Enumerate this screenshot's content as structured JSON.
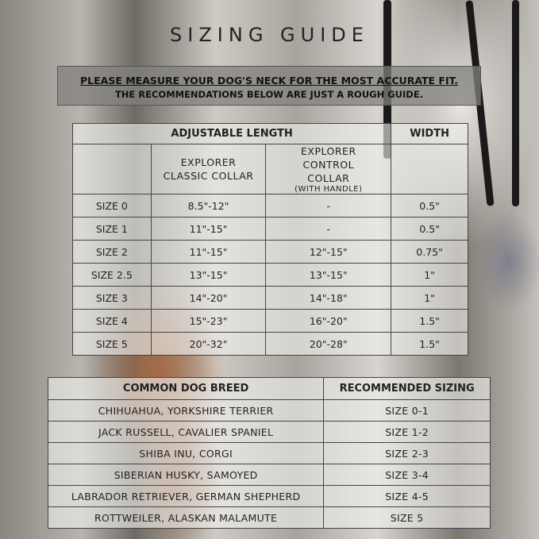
{
  "title": "SIZING GUIDE",
  "note": {
    "line1": "PLEASE MEASURE YOUR DOG'S NECK FOR THE MOST ACCURATE FIT.",
    "line2": "THE RECOMMENDATIONS BELOW ARE JUST A ROUGH GUIDE."
  },
  "size_table": {
    "group_headers": {
      "length": "ADJUSTABLE LENGTH",
      "width": "WIDTH"
    },
    "columns": {
      "classic": "EXPLORER CLASSIC COLLAR",
      "control": "EXPLORER CONTROL COLLAR",
      "control_note": "(WITH HANDLE)"
    },
    "rows": [
      {
        "size": "SIZE 0",
        "classic": "8.5\"-12\"",
        "control": "-",
        "width": "0.5\""
      },
      {
        "size": "SIZE 1",
        "classic": "11\"-15\"",
        "control": "-",
        "width": "0.5\""
      },
      {
        "size": "SIZE 2",
        "classic": "11\"-15\"",
        "control": "12\"-15\"",
        "width": "0.75\""
      },
      {
        "size": "SIZE 2.5",
        "classic": "13\"-15\"",
        "control": "13\"-15\"",
        "width": "1\""
      },
      {
        "size": "SIZE 3",
        "classic": "14\"-20\"",
        "control": "14\"-18\"",
        "width": "1\""
      },
      {
        "size": "SIZE 4",
        "classic": "15\"-23\"",
        "control": "16\"-20\"",
        "width": "1.5\""
      },
      {
        "size": "SIZE 5",
        "classic": "20\"-32\"",
        "control": "20\"-28\"",
        "width": "1.5\""
      }
    ]
  },
  "breed_table": {
    "headers": {
      "breed": "COMMON DOG BREED",
      "sizing": "RECOMMENDED SIZING"
    },
    "rows": [
      {
        "breed": "CHIHUAHUA, YORKSHIRE TERRIER",
        "sizing": "SIZE 0-1"
      },
      {
        "breed": "JACK RUSSELL, CAVALIER SPANIEL",
        "sizing": "SIZE 1-2"
      },
      {
        "breed": "SHIBA INU, CORGI",
        "sizing": "SIZE 2-3"
      },
      {
        "breed": "SIBERIAN HUSKY, SAMOYED",
        "sizing": "SIZE 3-4"
      },
      {
        "breed": "LABRADOR RETRIEVER, GERMAN SHEPHERD",
        "sizing": "SIZE 4-5"
      },
      {
        "breed": "ROTTWEILER, ALASKAN MALAMUTE",
        "sizing": "SIZE 5"
      }
    ]
  }
}
